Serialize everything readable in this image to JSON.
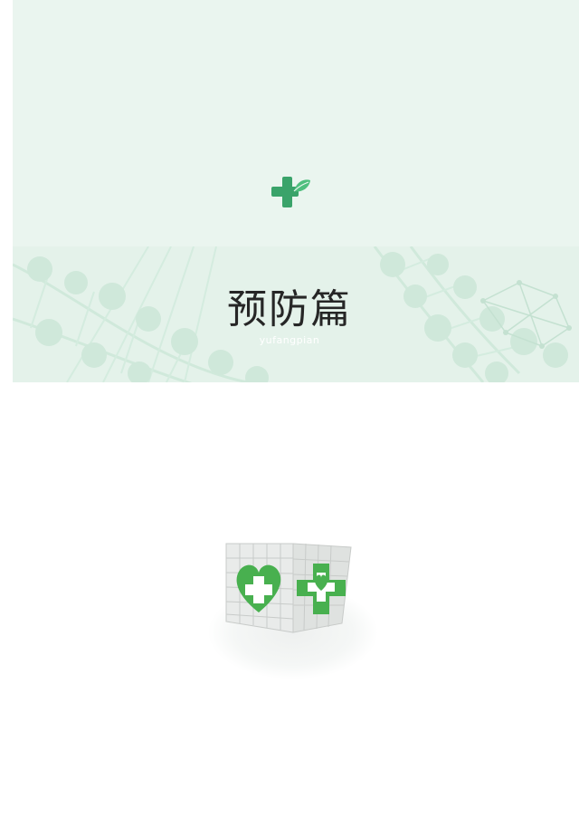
{
  "section": {
    "title": "预防篇",
    "subtitle": "yufangpian"
  },
  "colors": {
    "accent_green": "#3aa36a",
    "band_background": "#eaf5ef"
  },
  "icons": {
    "logo": "medical-cross-leaf-icon",
    "illustration": "medical-cube-illustration"
  }
}
